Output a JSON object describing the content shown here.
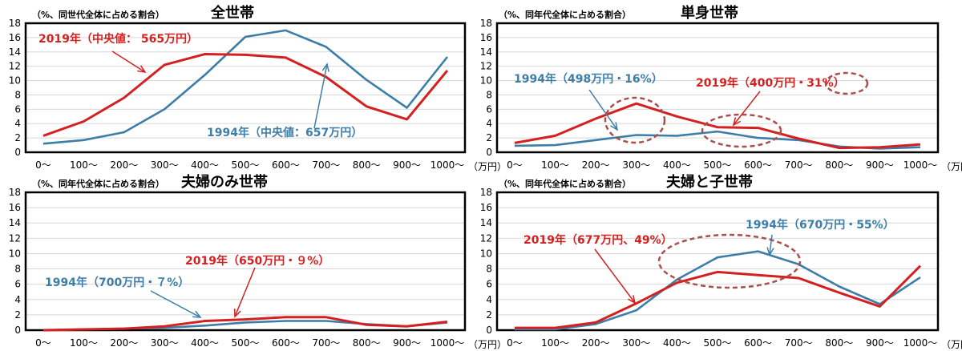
{
  "colors": {
    "y2019": "#d42020",
    "y1994": "#3d7ea8",
    "ellipse": "#a8504a",
    "grid": "#d8d8d8"
  },
  "chart_data": [
    {
      "type": "line",
      "title": "全世帯",
      "ylabel": "（%、同世代全体に占める割合）",
      "unit": "（万円）",
      "categories": [
        "0～",
        "100～",
        "200～",
        "300～",
        "400～",
        "500～",
        "600～",
        "700～",
        "800～",
        "900～",
        "1000～"
      ],
      "ylim": [
        0,
        18
      ],
      "yticks": [
        0,
        2,
        4,
        6,
        8,
        10,
        12,
        14,
        16,
        18
      ],
      "series": [
        {
          "key": "y2019",
          "values": [
            2.3,
            4.3,
            7.6,
            12.2,
            13.7,
            13.6,
            13.2,
            10.5,
            6.4,
            4.6,
            11.4
          ]
        },
        {
          "key": "y1994",
          "values": [
            1.2,
            1.7,
            2.8,
            6.0,
            10.8,
            16.1,
            17.0,
            14.7,
            10.1,
            6.2,
            13.3
          ]
        }
      ],
      "annotations": [
        {
          "key": "y2019",
          "text": "2019年（中央値： 565万円）"
        },
        {
          "key": "y1994",
          "text": "1994年（中央値：657万円）"
        }
      ]
    },
    {
      "type": "line",
      "title": "単身世帯",
      "ylabel": "（%、同年代全体に占める割合）",
      "unit": "（万円）",
      "categories": [
        "0～",
        "100～",
        "200～",
        "300～",
        "400～",
        "500～",
        "600～",
        "700～",
        "800～",
        "900～",
        "1000～"
      ],
      "ylim": [
        0,
        18
      ],
      "yticks": [
        0,
        2,
        4,
        6,
        8,
        10,
        12,
        14,
        16,
        18
      ],
      "series": [
        {
          "key": "y2019",
          "values": [
            1.3,
            2.3,
            4.7,
            6.8,
            5.0,
            3.5,
            3.4,
            1.9,
            0.6,
            0.7,
            1.1
          ]
        },
        {
          "key": "y1994",
          "values": [
            0.9,
            1.0,
            1.7,
            2.4,
            2.3,
            2.9,
            2.0,
            1.7,
            0.8,
            0.5,
            0.7
          ]
        }
      ],
      "annotations": [
        {
          "key": "y1994",
          "text": "1994年（498万円・16%）"
        },
        {
          "key": "y2019",
          "text": "2019年（400万円・31%）"
        }
      ]
    },
    {
      "type": "line",
      "title": "夫婦のみ世帯",
      "ylabel": "（%、同年代全体に占める割合）",
      "unit": "（万円）",
      "categories": [
        "0～",
        "100～",
        "200～",
        "300～",
        "400～",
        "500～",
        "600～",
        "700～",
        "800～",
        "900～",
        "1000～"
      ],
      "ylim": [
        0,
        18
      ],
      "yticks": [
        0,
        2,
        4,
        6,
        8,
        10,
        12,
        14,
        16,
        18
      ],
      "series": [
        {
          "key": "y2019",
          "values": [
            0.0,
            0.1,
            0.2,
            0.5,
            1.2,
            1.4,
            1.7,
            1.7,
            0.7,
            0.5,
            1.1
          ]
        },
        {
          "key": "y1994",
          "values": [
            0.0,
            0.1,
            0.2,
            0.3,
            0.6,
            1.0,
            1.2,
            1.2,
            0.8,
            0.5,
            1.0
          ]
        }
      ],
      "annotations": [
        {
          "key": "y2019",
          "text": "2019年（650万円・９%）"
        },
        {
          "key": "y1994",
          "text": "1994年（700万円・７%）"
        }
      ]
    },
    {
      "type": "line",
      "title": "夫婦と子世帯",
      "ylabel": "（%、同年代全体に占める割合）",
      "unit": "（万円）",
      "categories": [
        "0～",
        "100～",
        "200～",
        "300～",
        "400～",
        "500～",
        "600～",
        "700～",
        "800～",
        "900～",
        "1000～"
      ],
      "ylim": [
        0,
        18
      ],
      "yticks": [
        0,
        2,
        4,
        6,
        8,
        10,
        12,
        14,
        16,
        18
      ],
      "series": [
        {
          "key": "y2019",
          "values": [
            0.3,
            0.3,
            1.0,
            3.5,
            6.2,
            7.6,
            7.2,
            6.8,
            4.9,
            3.1,
            8.4
          ]
        },
        {
          "key": "y1994",
          "values": [
            0.1,
            0.1,
            0.8,
            2.6,
            6.6,
            9.5,
            10.3,
            8.6,
            5.7,
            3.4,
            6.9
          ]
        }
      ],
      "annotations": [
        {
          "key": "y2019",
          "text": "2019年（677万円、49%）"
        },
        {
          "key": "y1994",
          "text": "1994年（670万円・55%）"
        }
      ]
    }
  ]
}
